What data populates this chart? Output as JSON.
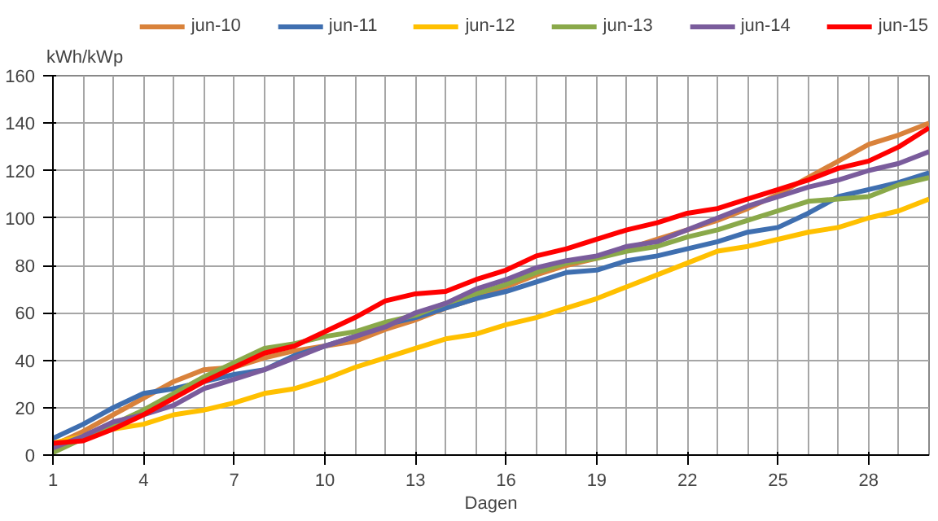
{
  "chart_data": {
    "type": "line",
    "ylabel": "kWh/kWp",
    "xlabel": "Dagen",
    "x": [
      1,
      2,
      3,
      4,
      5,
      6,
      7,
      8,
      9,
      10,
      11,
      12,
      13,
      14,
      15,
      16,
      17,
      18,
      19,
      20,
      21,
      22,
      23,
      24,
      25,
      26,
      27,
      28,
      29,
      30
    ],
    "xlim": [
      1,
      30
    ],
    "xticks": [
      1,
      4,
      7,
      10,
      13,
      16,
      19,
      22,
      25,
      28
    ],
    "ylim": [
      0,
      160
    ],
    "yticks": [
      0,
      20,
      40,
      60,
      80,
      100,
      120,
      140,
      160
    ],
    "grid": true,
    "legend": "top",
    "marker": "none",
    "line_style": "solid",
    "series": [
      {
        "name": "jun-10",
        "color": "#d9823b",
        "values": [
          4,
          10,
          17,
          24,
          31,
          36,
          37,
          41,
          44,
          46,
          48,
          53,
          57,
          62,
          66,
          71,
          76,
          80,
          83,
          87,
          91,
          95,
          99,
          104,
          110,
          117,
          124,
          131,
          135,
          140
        ]
      },
      {
        "name": "jun-11",
        "color": "#3f6fb0",
        "values": [
          7,
          13,
          20,
          26,
          28,
          31,
          34,
          36,
          42,
          46,
          50,
          55,
          58,
          62,
          66,
          69,
          73,
          77,
          78,
          82,
          84,
          87,
          90,
          94,
          96,
          102,
          109,
          112,
          115,
          119
        ]
      },
      {
        "name": "jun-12",
        "color": "#ffc000",
        "values": [
          5,
          8,
          11,
          13,
          17,
          19,
          22,
          26,
          28,
          32,
          37,
          41,
          45,
          49,
          51,
          55,
          58,
          62,
          66,
          71,
          76,
          81,
          86,
          88,
          91,
          94,
          96,
          100,
          103,
          108
        ]
      },
      {
        "name": "jun-13",
        "color": "#8aa94a",
        "values": [
          1,
          7,
          13,
          19,
          26,
          33,
          39,
          45,
          47,
          50,
          52,
          56,
          59,
          64,
          68,
          72,
          77,
          81,
          83,
          86,
          88,
          92,
          95,
          99,
          103,
          107,
          108,
          109,
          114,
          117
        ]
      },
      {
        "name": "jun-14",
        "color": "#7a5c9c",
        "values": [
          3,
          8,
          14,
          17,
          21,
          28,
          32,
          36,
          41,
          46,
          50,
          54,
          60,
          64,
          70,
          74,
          79,
          82,
          84,
          88,
          90,
          95,
          100,
          105,
          109,
          113,
          116,
          120,
          123,
          128
        ]
      },
      {
        "name": "jun-15",
        "color": "#ff0000",
        "values": [
          5,
          6,
          11,
          17,
          24,
          31,
          37,
          43,
          46,
          52,
          58,
          65,
          68,
          69,
          74,
          78,
          84,
          87,
          91,
          95,
          98,
          102,
          104,
          108,
          112,
          116,
          121,
          124,
          130,
          138
        ]
      }
    ]
  }
}
